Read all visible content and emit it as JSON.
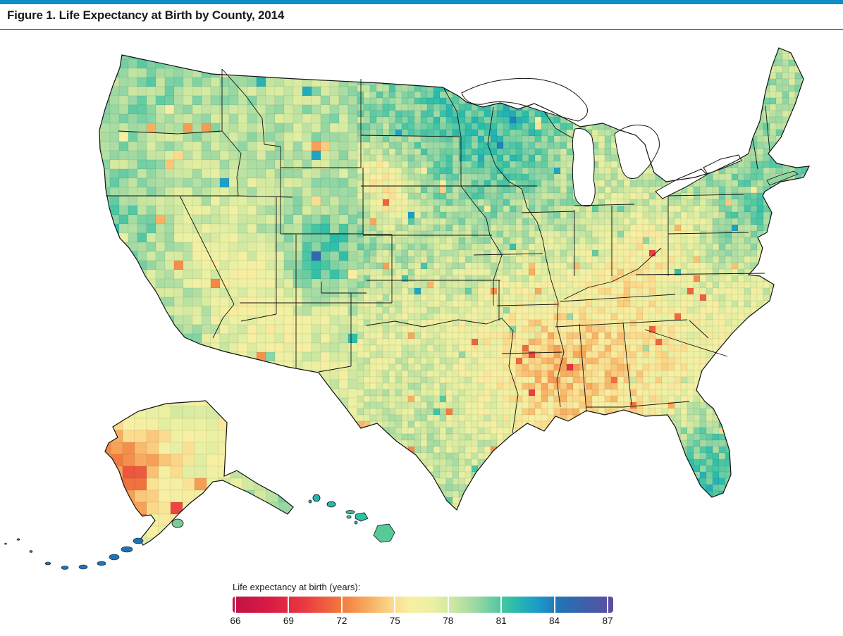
{
  "page": {
    "top_bar_color": "#0b8ec6",
    "background": "#ffffff"
  },
  "figure": {
    "title": "Figure 1. Life Expectancy at Birth by County, 2014"
  },
  "legend": {
    "label": "Life expectancy at birth (years):",
    "tick_labels": [
      "66",
      "69",
      "72",
      "75",
      "78",
      "81",
      "84",
      "87"
    ],
    "tick_values": [
      66,
      69,
      72,
      75,
      78,
      81,
      84,
      87
    ],
    "min": 66,
    "max": 87
  },
  "map": {
    "metric": "Life expectancy at birth (years)",
    "geography": "United States counties (lower 48, Alaska, Hawaii)",
    "year": "2014",
    "colormap_stops": [
      [
        66.0,
        "#c01347"
      ],
      [
        68.0,
        "#d91a45"
      ],
      [
        70.0,
        "#e93a40"
      ],
      [
        72.0,
        "#f27a3e"
      ],
      [
        73.5,
        "#f7ad5f"
      ],
      [
        74.8,
        "#fbd98b"
      ],
      [
        75.8,
        "#f8efa3"
      ],
      [
        77.0,
        "#eaf0a3"
      ],
      [
        78.0,
        "#d2e9a1"
      ],
      [
        79.5,
        "#97d7a4"
      ],
      [
        80.7,
        "#53c8a3"
      ],
      [
        81.5,
        "#2cbda9"
      ],
      [
        82.8,
        "#1c9cc9"
      ],
      [
        84.0,
        "#2274b6"
      ],
      [
        85.5,
        "#3f5fa9"
      ],
      [
        87.0,
        "#5c4ea2"
      ]
    ],
    "regional_patterns": [
      {
        "region": "Upper Midwest (MN, WI, IA, Dakotas)",
        "approx_years": "79-84 (green/blue)"
      },
      {
        "region": "Central Colorado mountains",
        "approx_years": "83-87 (blue/purple)"
      },
      {
        "region": "South Dakota reservation counties",
        "approx_years": "66-70 (dark red)"
      },
      {
        "region": "Mississippi Delta and Deep South",
        "approx_years": "71-75 (orange/red)"
      },
      {
        "region": "Eastern Kentucky / Appalachia",
        "approx_years": "70-74 (orange/red)"
      },
      {
        "region": "Interior Nevada",
        "approx_years": "74-77 (orange)"
      },
      {
        "region": "California coast",
        "approx_years": "80-83 (teal/blue)"
      },
      {
        "region": "Northeast metros and New England",
        "approx_years": "79-83 (green/blue)"
      },
      {
        "region": "South Florida",
        "approx_years": "79-82 (teal)"
      },
      {
        "region": "Western Alaska",
        "approx_years": "68-73 (red/orange)"
      },
      {
        "region": "Southeast Alaska panhandle",
        "approx_years": "78-81 (green/teal)"
      },
      {
        "region": "Hawaii",
        "approx_years": "80-82 (teal)"
      }
    ],
    "pattern_anchors": [
      [
        215,
        105,
        32,
        80.5
      ],
      [
        200,
        180,
        30,
        79.5
      ],
      [
        240,
        170,
        80,
        79.0
      ],
      [
        300,
        230,
        70,
        78.5
      ],
      [
        160,
        300,
        40,
        80.0
      ],
      [
        182,
        360,
        40,
        81.5
      ],
      [
        205,
        395,
        35,
        77.0
      ],
      [
        235,
        460,
        50,
        80.5
      ],
      [
        260,
        430,
        30,
        78.0
      ],
      [
        330,
        380,
        60,
        75.2
      ],
      [
        300,
        320,
        50,
        77.5
      ],
      [
        390,
        330,
        25,
        79.5
      ],
      [
        390,
        370,
        45,
        78.3
      ],
      [
        370,
        440,
        50,
        77.0
      ],
      [
        420,
        470,
        45,
        76.5
      ],
      [
        470,
        490,
        55,
        77.2
      ],
      [
        360,
        150,
        90,
        78.6
      ],
      [
        460,
        170,
        70,
        78.6
      ],
      [
        455,
        280,
        60,
        78.6
      ],
      [
        468,
        362,
        38,
        84.8
      ],
      [
        445,
        395,
        28,
        81.0
      ],
      [
        535,
        390,
        45,
        78.2
      ],
      [
        560,
        140,
        60,
        79.8
      ],
      [
        545,
        250,
        22,
        68.5
      ],
      [
        558,
        292,
        18,
        69.5
      ],
      [
        590,
        300,
        70,
        78.6
      ],
      [
        600,
        230,
        50,
        79.5
      ],
      [
        672,
        185,
        70,
        81.8
      ],
      [
        690,
        230,
        20,
        82.5
      ],
      [
        700,
        240,
        60,
        80.5
      ],
      [
        720,
        300,
        60,
        79.3
      ],
      [
        610,
        335,
        55,
        79.0
      ],
      [
        610,
        400,
        70,
        78.2
      ],
      [
        625,
        470,
        70,
        76.2
      ],
      [
        560,
        545,
        70,
        77.6
      ],
      [
        605,
        575,
        45,
        79.0
      ],
      [
        625,
        655,
        45,
        78.5
      ],
      [
        640,
        640,
        55,
        78.0
      ],
      [
        520,
        580,
        60,
        78.0
      ],
      [
        660,
        570,
        60,
        77.0
      ],
      [
        745,
        470,
        55,
        74.6
      ],
      [
        790,
        505,
        35,
        72.0
      ],
      [
        775,
        570,
        50,
        74.6
      ],
      [
        735,
        395,
        60,
        77.2
      ],
      [
        775,
        335,
        50,
        78.6
      ],
      [
        808,
        295,
        25,
        79.8
      ],
      [
        855,
        330,
        70,
        77.4
      ],
      [
        862,
        240,
        50,
        78.4
      ],
      [
        905,
        390,
        32,
        72.4
      ],
      [
        945,
        352,
        40,
        74.8
      ],
      [
        862,
        445,
        75,
        75.6
      ],
      [
        850,
        525,
        55,
        73.8
      ],
      [
        925,
        525,
        55,
        75.3
      ],
      [
        975,
        475,
        45,
        76.2
      ],
      [
        1000,
        435,
        60,
        76.8
      ],
      [
        995,
        385,
        55,
        78.2
      ],
      [
        1025,
        342,
        22,
        81.0
      ],
      [
        975,
        295,
        60,
        78.4
      ],
      [
        1015,
        235,
        55,
        79.2
      ],
      [
        1062,
        300,
        20,
        82.0
      ],
      [
        1078,
        235,
        50,
        80.0
      ],
      [
        1108,
        140,
        45,
        78.8
      ],
      [
        905,
        572,
        40,
        75.6
      ],
      [
        985,
        625,
        50,
        80.3
      ],
      [
        1000,
        688,
        28,
        81.3
      ],
      [
        185,
        662,
        33,
        72.0
      ],
      [
        188,
        674,
        12,
        68.0
      ],
      [
        262,
        625,
        55,
        75.3
      ],
      [
        268,
        588,
        45,
        77.6
      ],
      [
        305,
        655,
        40,
        76.5
      ],
      [
        378,
        700,
        45,
        79.6
      ]
    ],
    "hawaii_fills": [
      "#25b6ad",
      "#2ab4ad",
      "#28b7ac",
      "#2fbfa5",
      "#42c4a0",
      "#2fbfa5",
      "#35c0a3",
      "#56ca97"
    ],
    "aleutian_fill": "#2173b7",
    "kodiak_fill": "#7ccb94",
    "long_island_fill": "#8fd4a1"
  }
}
